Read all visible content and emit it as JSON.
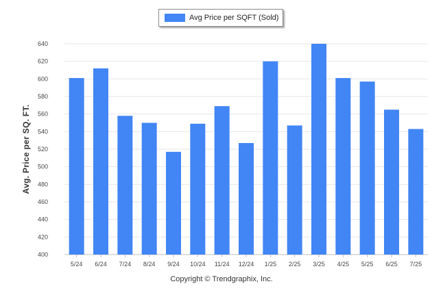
{
  "chart_data": {
    "type": "bar",
    "categories": [
      "5/24",
      "6/24",
      "7/24",
      "8/24",
      "9/24",
      "10/24",
      "11/24",
      "12/24",
      "1/25",
      "2/25",
      "3/25",
      "4/25",
      "5/25",
      "6/25",
      "7/25"
    ],
    "series": [
      {
        "name": "Avg Price per SQFT (Sold)",
        "values": [
          601,
          612,
          558,
          550,
          517,
          549,
          569,
          527,
          620,
          547,
          640,
          601,
          597,
          565,
          543
        ],
        "color": "#4285f4"
      }
    ],
    "title": "",
    "xlabel": "",
    "ylabel": "Avg. Price per SQ. FT.",
    "ylim": [
      400,
      640
    ],
    "yticks": [
      400,
      420,
      440,
      460,
      480,
      500,
      520,
      540,
      560,
      580,
      600,
      620,
      640
    ],
    "grid": true,
    "legend_position": "top-center"
  },
  "footer": {
    "copyright": "Copyright © Trendgraphix, Inc."
  }
}
